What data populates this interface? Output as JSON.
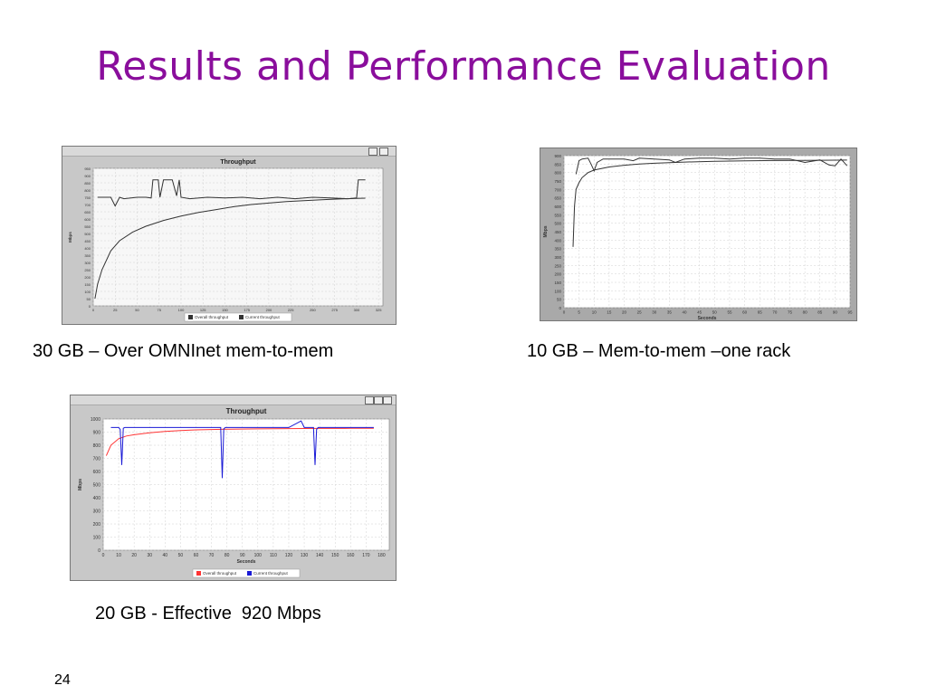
{
  "slide": {
    "title": "Results and Performance Evaluation",
    "page_number": "24",
    "captions": {
      "chart1": "30 GB – Over OMNInet mem-to-mem",
      "chart2": "10 GB – Mem-to-mem –one rack",
      "chart3": "20 GB - Effective  920 Mbps"
    }
  },
  "colors": {
    "title": "#8a0e9c",
    "plot_bg1": "#f7f7f7",
    "panel_bg1": "#c8c8c8",
    "panel_bg2": "#a9a9a9",
    "series_overall": "#ff3333",
    "series_current": "#1a1ad6",
    "line_dark": "#333333"
  },
  "chart_data": [
    {
      "type": "line",
      "title": "Throughput",
      "ylabel": "Mbps",
      "xlabel": "Seconds",
      "ylim": [
        0,
        1000
      ],
      "xlim": [
        0,
        185
      ],
      "yticks": [
        0,
        100,
        200,
        300,
        400,
        500,
        600,
        700,
        800,
        900,
        1000
      ],
      "xticks": [
        0,
        10,
        20,
        30,
        40,
        50,
        60,
        70,
        80,
        90,
        100,
        110,
        120,
        130,
        140,
        150,
        160,
        170,
        180
      ],
      "legend": "bottom",
      "series": [
        {
          "name": "Overall throughput",
          "x": [
            2,
            5,
            10,
            15,
            20,
            30,
            40,
            50,
            60,
            80,
            100,
            120,
            140,
            160,
            175
          ],
          "values": [
            720,
            800,
            850,
            870,
            880,
            895,
            905,
            912,
            917,
            922,
            925,
            927,
            928,
            929,
            930
          ]
        },
        {
          "name": "Current throughput",
          "x": [
            5,
            10,
            11,
            12,
            13,
            14,
            20,
            30,
            40,
            50,
            60,
            70,
            76,
            77,
            78,
            79,
            80,
            90,
            100,
            110,
            120,
            128,
            130,
            136,
            137,
            138,
            139,
            140,
            150,
            160,
            170,
            175
          ],
          "values": [
            935,
            935,
            920,
            650,
            930,
            935,
            935,
            935,
            935,
            935,
            935,
            935,
            935,
            550,
            925,
            935,
            935,
            935,
            935,
            935,
            935,
            985,
            935,
            935,
            650,
            920,
            935,
            935,
            935,
            935,
            935,
            935
          ]
        }
      ]
    },
    {
      "type": "line",
      "ylabel": "Mbps",
      "xlabel": "Seconds",
      "ylim": [
        0,
        900
      ],
      "xlim": [
        0,
        95
      ],
      "yticks": [
        0,
        50,
        100,
        150,
        200,
        250,
        300,
        350,
        400,
        450,
        500,
        550,
        600,
        650,
        700,
        750,
        800,
        850,
        900
      ],
      "xticks": [
        0,
        5,
        10,
        15,
        20,
        25,
        30,
        35,
        40,
        45,
        50,
        55,
        60,
        65,
        70,
        75,
        80,
        85,
        90,
        95
      ],
      "series": [
        {
          "x": [
            3,
            3.5,
            4,
            5,
            6,
            8,
            10,
            15,
            20,
            25,
            30,
            40,
            50,
            60,
            70,
            80,
            90,
            94
          ],
          "values": [
            360,
            600,
            700,
            740,
            770,
            800,
            815,
            833,
            843,
            850,
            855,
            862,
            866,
            869,
            871,
            872,
            873,
            874
          ]
        },
        {
          "x": [
            4,
            5,
            6,
            8,
            9,
            10,
            11,
            13,
            15,
            20,
            23,
            25,
            30,
            35,
            37,
            40,
            45,
            50,
            55,
            60,
            65,
            70,
            75,
            80,
            85,
            88,
            90,
            92,
            94
          ],
          "values": [
            790,
            870,
            880,
            885,
            850,
            810,
            860,
            880,
            880,
            880,
            870,
            885,
            880,
            875,
            860,
            880,
            885,
            885,
            880,
            885,
            885,
            880,
            880,
            860,
            875,
            845,
            840,
            880,
            840
          ]
        }
      ]
    },
    {
      "type": "line",
      "title": "Throughput",
      "ylabel": "Mbps",
      "xlabel": "Seconds",
      "ylim": [
        0,
        950
      ],
      "xlim": [
        0,
        330
      ],
      "yticks": [
        0,
        25,
        50,
        75,
        100,
        125,
        150,
        175,
        200,
        225,
        250,
        275,
        300,
        325,
        350,
        375,
        400,
        425,
        450,
        475,
        500,
        525,
        550,
        575,
        600,
        625,
        650,
        675,
        700,
        725,
        750,
        775,
        800,
        825,
        850,
        875,
        900,
        925,
        950
      ],
      "xticks": [
        0,
        25,
        50,
        75,
        100,
        125,
        150,
        175,
        200,
        225,
        250,
        275,
        300,
        325
      ],
      "legend": "bottom",
      "series": [
        {
          "name": "Overall throughput",
          "x": [
            2,
            5,
            10,
            20,
            30,
            45,
            60,
            80,
            100,
            120,
            140,
            160,
            180,
            200,
            220,
            240,
            260,
            280,
            300,
            310
          ],
          "values": [
            50,
            150,
            250,
            380,
            450,
            510,
            550,
            590,
            620,
            645,
            665,
            685,
            700,
            710,
            720,
            727,
            733,
            738,
            742,
            744
          ]
        },
        {
          "name": "Current throughput",
          "x": [
            5,
            20,
            25,
            30,
            35,
            50,
            60,
            66,
            68,
            70,
            72,
            74,
            76,
            80,
            85,
            90,
            95,
            98,
            100,
            110,
            130,
            150,
            170,
            190,
            210,
            230,
            250,
            270,
            290,
            300,
            302,
            305,
            310
          ],
          "values": [
            750,
            750,
            690,
            750,
            740,
            750,
            750,
            745,
            870,
            870,
            870,
            870,
            750,
            870,
            870,
            870,
            760,
            870,
            750,
            740,
            750,
            745,
            750,
            740,
            750,
            740,
            750,
            745,
            740,
            745,
            870,
            870,
            870
          ]
        }
      ]
    }
  ]
}
